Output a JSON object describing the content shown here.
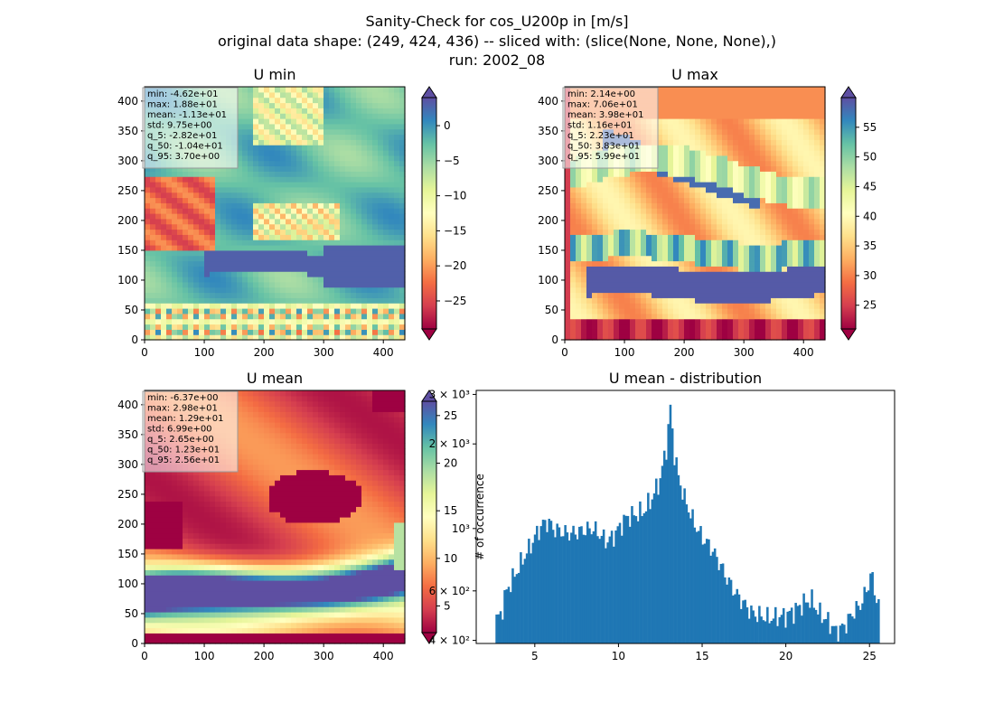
{
  "figure": {
    "suptitle_lines": [
      "Sanity-Check for cos_U200p in [m/s]",
      "original data shape: (249, 424, 436) -- sliced with: (slice(None, None, None),)",
      "run: 2002_08"
    ]
  },
  "colors": {
    "spectral": [
      "#9e0142",
      "#d53e4f",
      "#f46d43",
      "#fdae61",
      "#fee08b",
      "#ffffbf",
      "#e6f598",
      "#abdda4",
      "#66c2a5",
      "#3288bd",
      "#5e4fa2"
    ],
    "histogram_bar": "#1f77b4"
  },
  "chart_data": [
    {
      "type": "heatmap",
      "title": "U min",
      "xlim": [
        0,
        436
      ],
      "ylim": [
        0,
        424
      ],
      "xticks": [
        0,
        100,
        200,
        300,
        400
      ],
      "yticks": [
        0,
        50,
        100,
        150,
        200,
        250,
        300,
        350,
        400
      ],
      "colorbar": {
        "range": [
          -29,
          4
        ],
        "ticks": [
          0,
          -5,
          -10,
          -15,
          -20,
          -25
        ],
        "extend": "both"
      },
      "stats": [
        "min: -4.62e+01",
        "max: 1.88e+01",
        "mean: -1.13e+01",
        "std: 9.75e+00",
        "q_5: -2.82e+01",
        "q_50: -1.04e+01",
        "q_95: 3.70e+00"
      ]
    },
    {
      "type": "heatmap",
      "title": "U max",
      "xlim": [
        0,
        436
      ],
      "ylim": [
        0,
        424
      ],
      "xticks": [
        0,
        100,
        200,
        300,
        400
      ],
      "yticks": [
        0,
        50,
        100,
        150,
        200,
        250,
        300,
        350,
        400
      ],
      "colorbar": {
        "range": [
          21,
          60
        ],
        "ticks": [
          25,
          30,
          35,
          40,
          45,
          50,
          55
        ],
        "extend": "both"
      },
      "stats": [
        "min: 2.14e+00",
        "max: 7.06e+01",
        "mean: 3.98e+01",
        "std: 1.16e+01",
        "q_5: 2.23e+01",
        "q_50: 3.83e+01",
        "q_95: 5.99e+01"
      ]
    },
    {
      "type": "heatmap",
      "title": "U mean",
      "xlim": [
        0,
        436
      ],
      "ylim": [
        0,
        424
      ],
      "xticks": [
        0,
        100,
        200,
        300,
        400
      ],
      "yticks": [
        0,
        50,
        100,
        150,
        200,
        250,
        300,
        350,
        400
      ],
      "colorbar": {
        "range": [
          2.2,
          26.5
        ],
        "ticks": [
          5,
          10,
          15,
          20,
          25
        ],
        "extend": "both"
      },
      "stats": [
        "min: -6.37e+00",
        "max: 2.98e+01",
        "mean: 1.29e+01",
        "std: 6.99e+00",
        "q_5: 2.65e+00",
        "q_50: 1.23e+01",
        "q_95: 2.56e+01"
      ]
    },
    {
      "type": "bar",
      "title": "U mean - distribution",
      "xlabel": "",
      "ylabel": "# of occurrence",
      "xlim": [
        1.5,
        26.5
      ],
      "ylim": [
        390,
        3100
      ],
      "yscale": "log",
      "xticks": [
        5,
        10,
        15,
        20,
        25
      ],
      "yticks": [
        {
          "value": 400,
          "label": "4 × 10²"
        },
        {
          "value": 600,
          "label": "6 × 10²"
        },
        {
          "value": 1000,
          "label": "10³"
        },
        {
          "value": 2000,
          "label": "2 × 10³"
        },
        {
          "value": 3000,
          "label": "3 × 10³"
        }
      ],
      "bin_range": [
        2.65,
        25.6
      ],
      "profile": [
        [
          2.65,
          470
        ],
        [
          3.0,
          500
        ],
        [
          3.3,
          600
        ],
        [
          3.6,
          650
        ],
        [
          3.9,
          700
        ],
        [
          4.2,
          760
        ],
        [
          4.5,
          820
        ],
        [
          4.8,
          880
        ],
        [
          5.1,
          960
        ],
        [
          5.5,
          1040
        ],
        [
          5.8,
          1060
        ],
        [
          6.1,
          1000
        ],
        [
          6.5,
          980
        ],
        [
          7.0,
          960
        ],
        [
          7.5,
          970
        ],
        [
          8.0,
          990
        ],
        [
          8.5,
          1000
        ],
        [
          8.9,
          950
        ],
        [
          9.3,
          900
        ],
        [
          9.7,
          940
        ],
        [
          10.0,
          1000
        ],
        [
          10.5,
          1100
        ],
        [
          11.0,
          1120
        ],
        [
          11.5,
          1150
        ],
        [
          12.0,
          1280
        ],
        [
          12.5,
          1500
        ],
        [
          12.9,
          2000
        ],
        [
          13.1,
          2700
        ],
        [
          13.3,
          1900
        ],
        [
          13.6,
          1500
        ],
        [
          14.0,
          1250
        ],
        [
          14.5,
          1050
        ],
        [
          15.0,
          930
        ],
        [
          15.5,
          860
        ],
        [
          16.0,
          760
        ],
        [
          16.5,
          660
        ],
        [
          17.0,
          590
        ],
        [
          17.5,
          540
        ],
        [
          18.0,
          500
        ],
        [
          19.0,
          480
        ],
        [
          20.0,
          490
        ],
        [
          20.5,
          510
        ],
        [
          21.0,
          540
        ],
        [
          21.5,
          560
        ],
        [
          22.0,
          500
        ],
        [
          22.5,
          470
        ],
        [
          23.0,
          430
        ],
        [
          23.5,
          450
        ],
        [
          24.0,
          500
        ],
        [
          24.5,
          540
        ],
        [
          24.9,
          620
        ],
        [
          25.1,
          700
        ],
        [
          25.3,
          600
        ],
        [
          25.6,
          520
        ]
      ]
    }
  ]
}
